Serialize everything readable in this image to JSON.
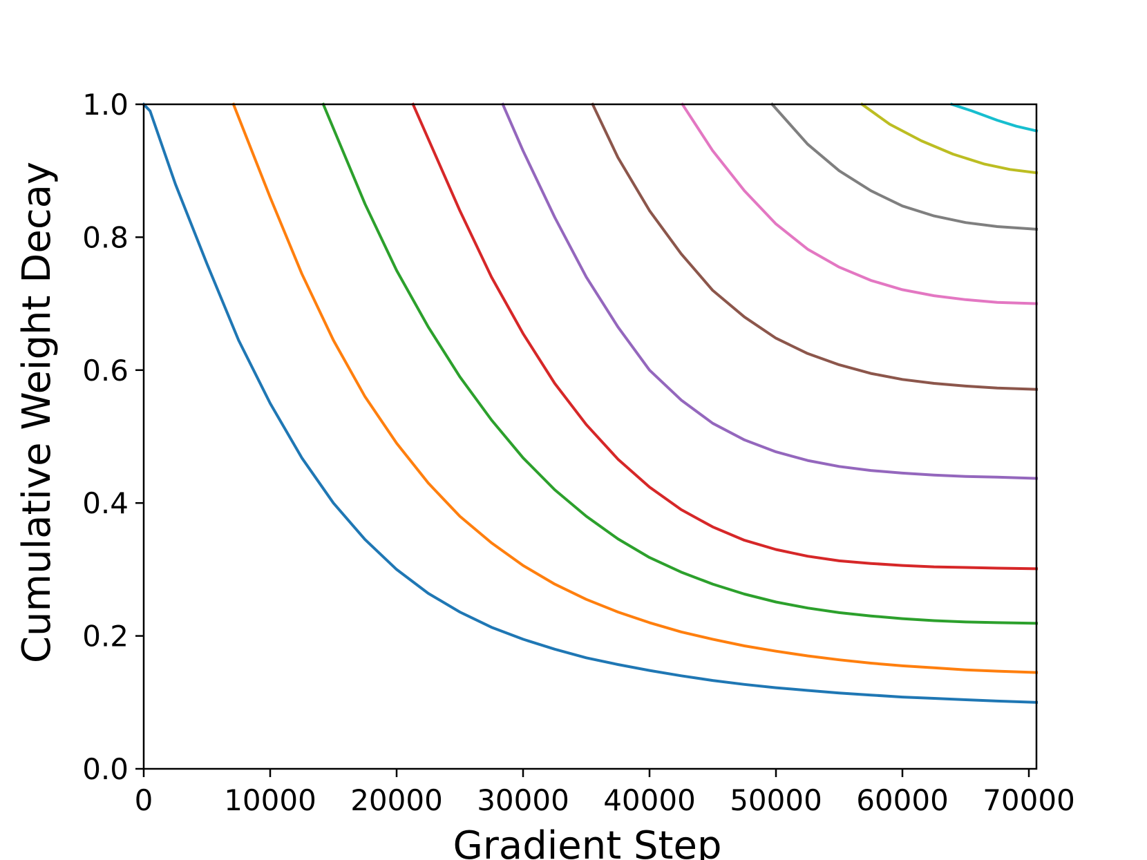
{
  "chart_data": {
    "type": "line",
    "title": "",
    "xlabel": "Gradient Step",
    "ylabel": "Cumulative Weight Decay",
    "xlim": [
      0,
      70600
    ],
    "ylim": [
      0.0,
      1.0
    ],
    "grid": false,
    "legend": "none",
    "x_ticks": [
      0,
      10000,
      20000,
      30000,
      40000,
      50000,
      60000,
      70000
    ],
    "x_tick_labels": [
      "0",
      "10000",
      "20000",
      "30000",
      "40000",
      "50000",
      "60000",
      "70000"
    ],
    "y_ticks": [
      0.0,
      0.2,
      0.4,
      0.6,
      0.8,
      1.0
    ],
    "y_tick_labels": [
      "0.0",
      "0.2",
      "0.4",
      "0.6",
      "0.8",
      "1.0"
    ],
    "series": [
      {
        "color": "#1f77b4",
        "x": [
          0,
          500,
          2500,
          5000,
          7500,
          10000,
          12500,
          15000,
          17500,
          20000,
          22500,
          25000,
          27500,
          30000,
          32500,
          35000,
          37500,
          40000,
          42500,
          45000,
          47500,
          50000,
          52500,
          55000,
          57500,
          60000,
          62500,
          65000,
          67500,
          70600
        ],
        "y": [
          1.0,
          0.99,
          0.88,
          0.76,
          0.645,
          0.55,
          0.468,
          0.4,
          0.345,
          0.3,
          0.264,
          0.236,
          0.213,
          0.195,
          0.18,
          0.167,
          0.157,
          0.148,
          0.14,
          0.133,
          0.127,
          0.122,
          0.118,
          0.114,
          0.111,
          0.108,
          0.106,
          0.104,
          0.102,
          0.1
        ]
      },
      {
        "color": "#ff7f0e",
        "x": [
          7100,
          10000,
          12500,
          15000,
          17500,
          20000,
          22500,
          25000,
          27500,
          30000,
          32500,
          35000,
          37500,
          40000,
          42500,
          45000,
          47500,
          50000,
          52500,
          55000,
          57500,
          60000,
          62500,
          65000,
          67500,
          70600
        ],
        "y": [
          1.0,
          0.86,
          0.745,
          0.645,
          0.56,
          0.49,
          0.43,
          0.38,
          0.34,
          0.306,
          0.278,
          0.255,
          0.236,
          0.22,
          0.206,
          0.195,
          0.185,
          0.177,
          0.17,
          0.164,
          0.159,
          0.155,
          0.152,
          0.149,
          0.147,
          0.145
        ]
      },
      {
        "color": "#2ca02c",
        "x": [
          14200,
          17500,
          20000,
          22500,
          25000,
          27500,
          30000,
          32500,
          35000,
          37500,
          40000,
          42500,
          45000,
          47500,
          50000,
          52500,
          55000,
          57500,
          60000,
          62500,
          65000,
          67500,
          70600
        ],
        "y": [
          1.0,
          0.85,
          0.75,
          0.665,
          0.59,
          0.525,
          0.468,
          0.42,
          0.38,
          0.346,
          0.318,
          0.296,
          0.278,
          0.263,
          0.251,
          0.242,
          0.235,
          0.23,
          0.226,
          0.223,
          0.221,
          0.22,
          0.219
        ]
      },
      {
        "color": "#d62728",
        "x": [
          21300,
          25000,
          27500,
          30000,
          32500,
          35000,
          37500,
          40000,
          42500,
          45000,
          47500,
          50000,
          52500,
          55000,
          57500,
          60000,
          62500,
          65000,
          67500,
          70600
        ],
        "y": [
          1.0,
          0.84,
          0.74,
          0.655,
          0.58,
          0.518,
          0.466,
          0.424,
          0.39,
          0.364,
          0.344,
          0.33,
          0.32,
          0.313,
          0.309,
          0.306,
          0.304,
          0.303,
          0.302,
          0.301
        ]
      },
      {
        "color": "#9467bd",
        "x": [
          28400,
          30000,
          32500,
          35000,
          37500,
          40000,
          42500,
          45000,
          47500,
          50000,
          52500,
          55000,
          57500,
          60000,
          62500,
          65000,
          67500,
          70600
        ],
        "y": [
          1.0,
          0.93,
          0.83,
          0.74,
          0.665,
          0.6,
          0.555,
          0.52,
          0.495,
          0.477,
          0.464,
          0.455,
          0.449,
          0.445,
          0.442,
          0.44,
          0.439,
          0.437
        ]
      },
      {
        "color": "#8c564b",
        "x": [
          35500,
          37500,
          40000,
          42500,
          45000,
          47500,
          50000,
          52500,
          55000,
          57500,
          60000,
          62500,
          65000,
          67500,
          70600
        ],
        "y": [
          1.0,
          0.92,
          0.84,
          0.775,
          0.72,
          0.68,
          0.648,
          0.625,
          0.608,
          0.595,
          0.586,
          0.58,
          0.576,
          0.573,
          0.571
        ]
      },
      {
        "color": "#e377c2",
        "x": [
          42600,
          45000,
          47500,
          50000,
          52500,
          55000,
          57500,
          60000,
          62500,
          65000,
          67500,
          70600
        ],
        "y": [
          1.0,
          0.93,
          0.87,
          0.82,
          0.782,
          0.755,
          0.735,
          0.721,
          0.712,
          0.706,
          0.702,
          0.7
        ]
      },
      {
        "color": "#7f7f7f",
        "x": [
          49700,
          52500,
          55000,
          57500,
          60000,
          62500,
          65000,
          67500,
          70600
        ],
        "y": [
          1.0,
          0.94,
          0.9,
          0.87,
          0.847,
          0.832,
          0.822,
          0.816,
          0.812
        ]
      },
      {
        "color": "#bcbd22",
        "x": [
          56800,
          59000,
          61500,
          64000,
          66500,
          68500,
          70600
        ],
        "y": [
          1.0,
          0.97,
          0.945,
          0.925,
          0.91,
          0.902,
          0.897
        ]
      },
      {
        "color": "#17becf",
        "x": [
          63900,
          65500,
          67500,
          69000,
          70600
        ],
        "y": [
          1.0,
          0.99,
          0.976,
          0.967,
          0.96
        ]
      }
    ]
  }
}
